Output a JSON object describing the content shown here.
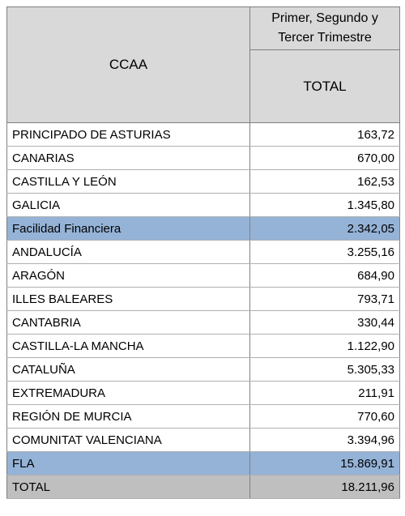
{
  "table": {
    "header": {
      "left": "CCAA",
      "right_top": "Primer, Segundo y Tercer Trimestre",
      "right_bottom": "TOTAL"
    },
    "rows": [
      [
        "PRINCIPADO DE ASTURIAS",
        "163,72"
      ],
      [
        "CANARIAS",
        "670,00"
      ],
      [
        "CASTILLA Y LEÓN",
        "162,53"
      ],
      [
        "GALICIA",
        "1.345,80"
      ],
      [
        "Facilidad Financiera",
        "2.342,05"
      ],
      [
        "ANDALUCÍA",
        "3.255,16"
      ],
      [
        "ARAGÓN",
        "684,90"
      ],
      [
        "ILLES BALEARES",
        "793,71"
      ],
      [
        "CANTABRIA",
        "330,44"
      ],
      [
        "CASTILLA-LA MANCHA",
        "1.122,90"
      ],
      [
        "CATALUÑA",
        "5.305,33"
      ],
      [
        "EXTREMADURA",
        "211,91"
      ],
      [
        "REGIÓN DE MURCIA",
        "770,60"
      ],
      [
        "COMUNITAT VALENCIANA",
        "3.394,96"
      ],
      [
        "FLA",
        "15.869,91"
      ],
      [
        "TOTAL",
        "18.211,96"
      ]
    ]
  }
}
